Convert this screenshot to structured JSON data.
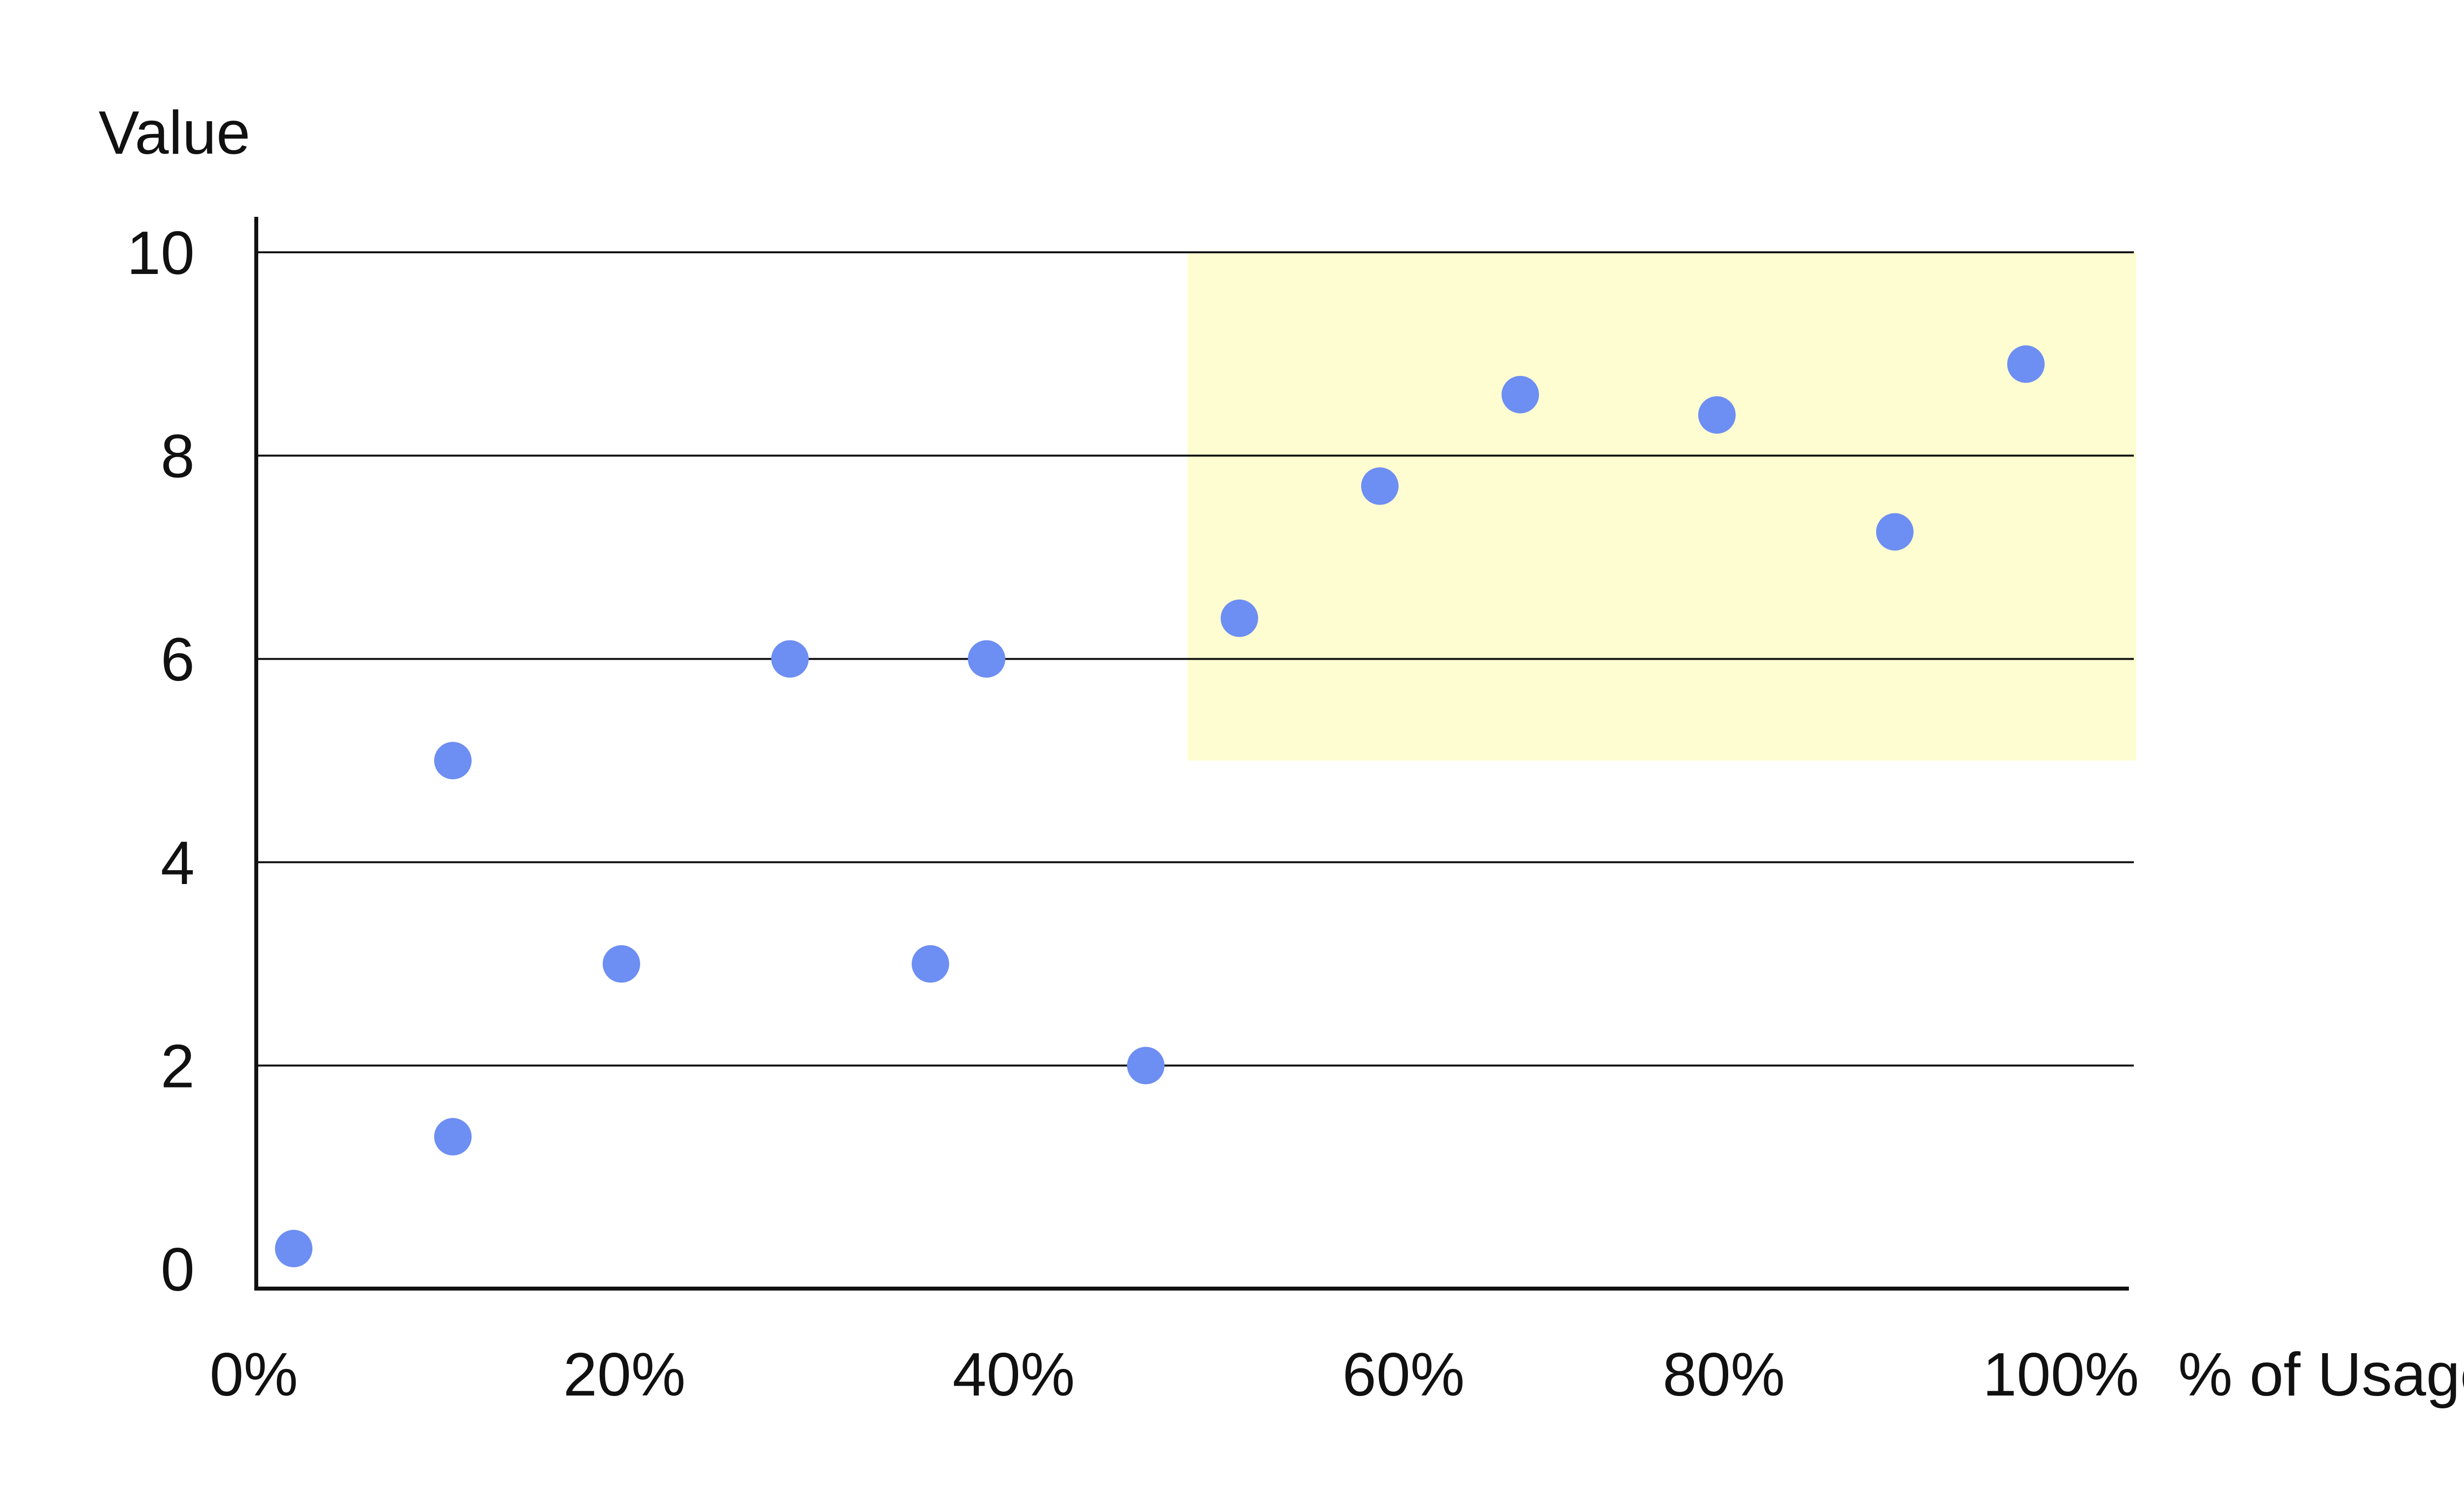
{
  "chart_data": {
    "type": "scatter",
    "title": "",
    "xlabel": "% of Usage",
    "ylabel": "Value",
    "xlim": [
      0,
      100
    ],
    "ylim": [
      0,
      10
    ],
    "x_ticks": [
      0,
      20,
      40,
      60,
      80,
      100
    ],
    "x_tick_labels": [
      "0%",
      "20%",
      "40%",
      "60%",
      "80%",
      "100%"
    ],
    "y_ticks": [
      0,
      2,
      4,
      6,
      8,
      10
    ],
    "y_tick_labels": [
      "0",
      "2",
      "4",
      "6",
      "8",
      "10"
    ],
    "grid": "horizontal",
    "highlight_region": {
      "x": [
        50,
        100
      ],
      "y": [
        5,
        10
      ],
      "color": "#fdfdd1"
    },
    "series": [
      {
        "color": "#6d8ef2",
        "points": [
          {
            "x": 2,
            "y": 0.2
          },
          {
            "x": 10.5,
            "y": 1.3
          },
          {
            "x": 10.5,
            "y": 5.0
          },
          {
            "x": 19.5,
            "y": 3.0
          },
          {
            "x": 28.5,
            "y": 6.0
          },
          {
            "x": 36,
            "y": 3.0
          },
          {
            "x": 39,
            "y": 6.0
          },
          {
            "x": 47.5,
            "y": 2.0
          },
          {
            "x": 52.5,
            "y": 6.4
          },
          {
            "x": 60,
            "y": 7.7
          },
          {
            "x": 67.5,
            "y": 8.6
          },
          {
            "x": 78,
            "y": 8.4
          },
          {
            "x": 87.5,
            "y": 7.25
          },
          {
            "x": 94.5,
            "y": 8.9
          }
        ]
      }
    ]
  }
}
